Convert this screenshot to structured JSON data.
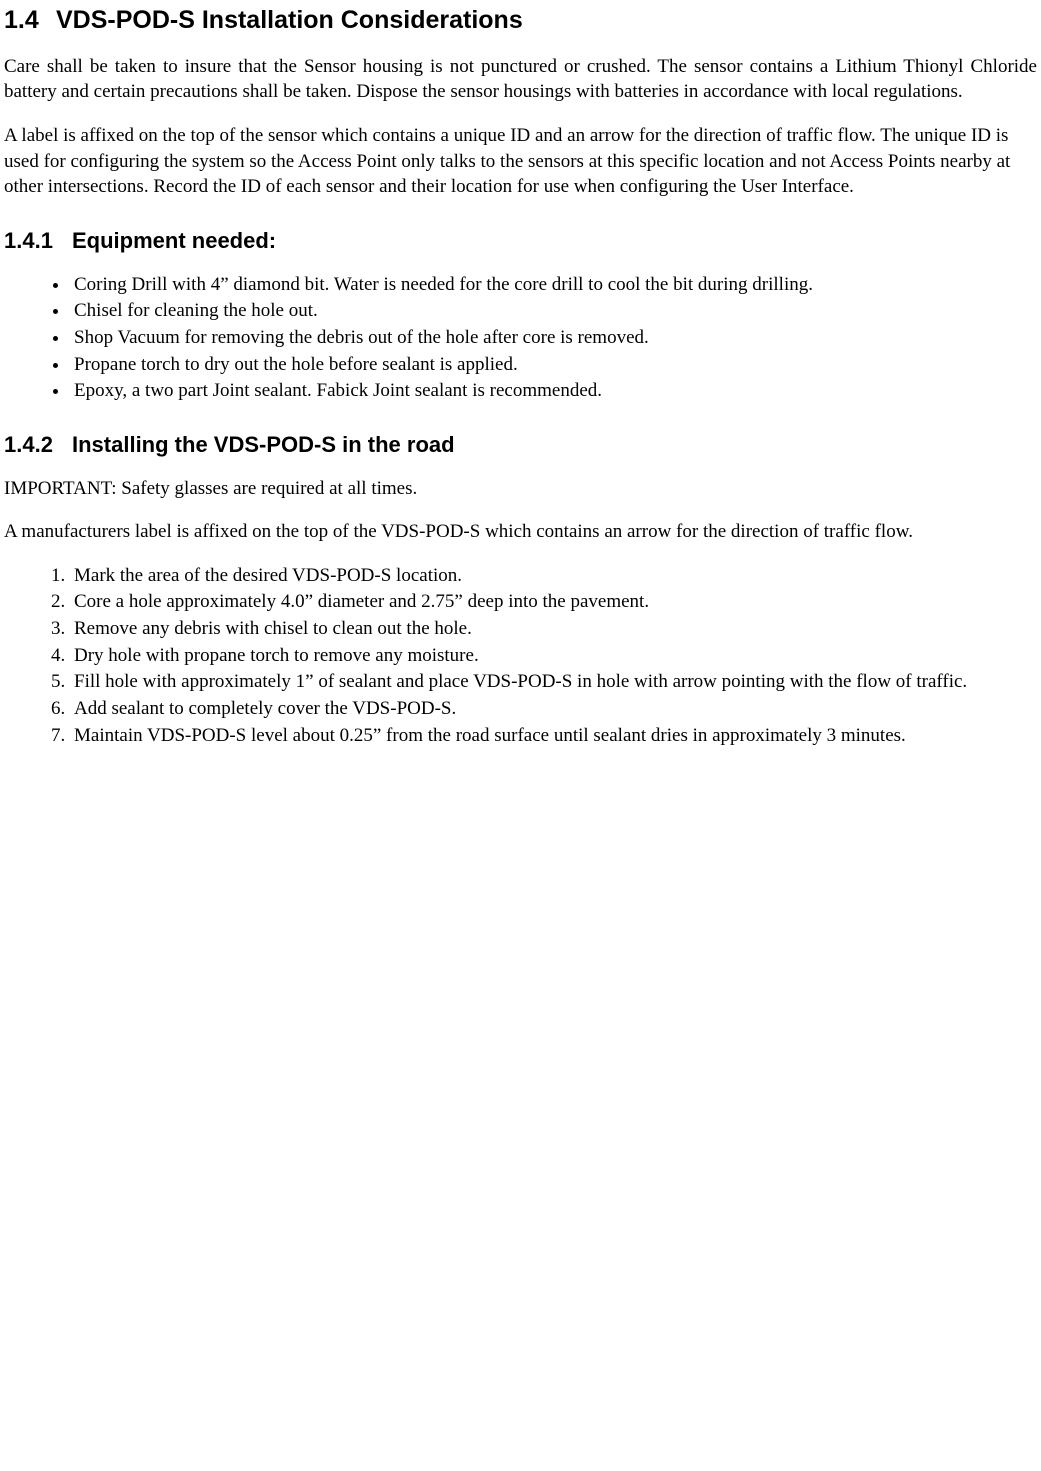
{
  "section": {
    "number": "1.4",
    "title": "VDS-POD-S Installation Considerations",
    "para1": "Care shall be taken to insure that the Sensor housing is not punctured or crushed. The sensor contains a Lithium Thionyl Chloride battery and certain precautions shall be taken. Dispose the sensor housings with batteries in accordance with local regulations.",
    "para2": "A label is affixed on the top of the sensor which contains a unique ID and an arrow for the direction of traffic flow. The unique ID is used for configuring the system so the Access Point only talks to the sensors at this specific location and not Access Points nearby at other intersections. Record the ID of each sensor and their location for use when configuring the User Interface."
  },
  "subsection1": {
    "number": "1.4.1",
    "title": "Equipment needed:",
    "items": [
      "Coring Drill with 4” diamond bit. Water is needed for the core drill to cool the bit during drilling.",
      "Chisel for cleaning the hole out.",
      "Shop Vacuum for removing the debris out of the hole after core is removed.",
      "Propane torch to dry out the hole before sealant is applied.",
      "Epoxy, a two part Joint sealant. Fabick Joint sealant is recommended."
    ]
  },
  "subsection2": {
    "number": "1.4.2",
    "title": "Installing the VDS-POD-S in the road",
    "important": "IMPORTANT: Safety glasses are required at all times.",
    "para": "A manufacturers label is affixed on the top of the VDS-POD-S which contains an arrow for the direction of traffic flow.",
    "steps": [
      "Mark the area of the desired VDS-POD-S location.",
      "Core a hole approximately 4.0” diameter and 2.75” deep into the pavement.",
      "Remove any debris with chisel to clean out the hole.",
      "Dry hole with propane torch to remove any moisture.",
      "Fill hole with approximately 1” of sealant and place VDS-POD-S in hole with arrow pointing with the flow of traffic.",
      "Add sealant to completely cover the VDS-POD-S.",
      "Maintain VDS-POD-S level about 0.25” from the road surface until sealant dries in approximately 3 minutes."
    ]
  }
}
